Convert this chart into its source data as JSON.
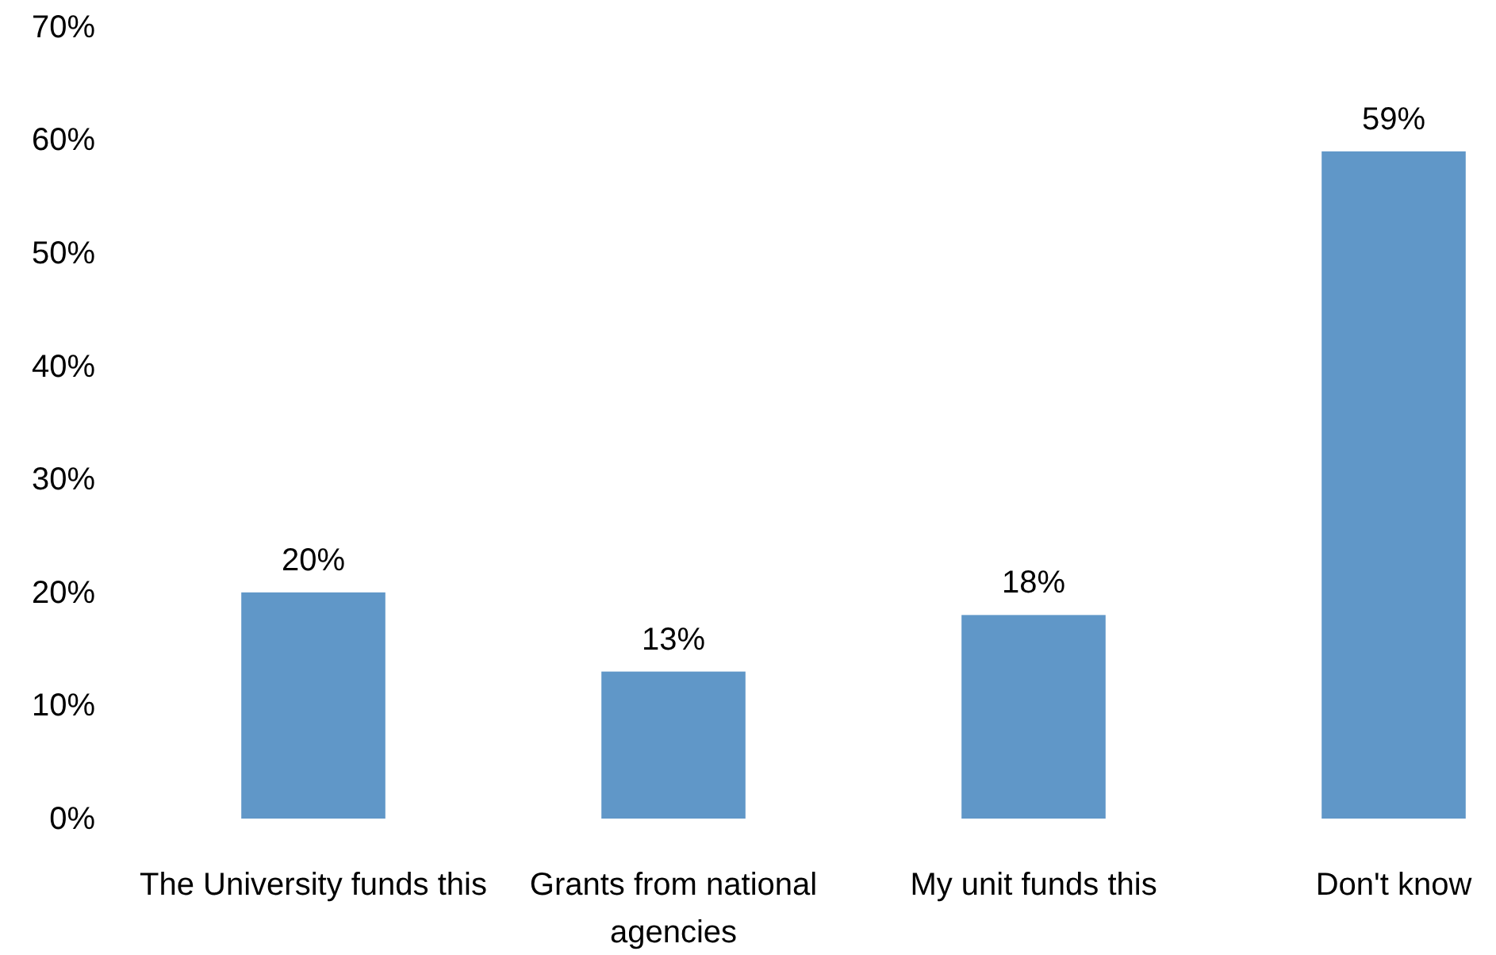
{
  "chart_data": {
    "type": "bar",
    "categories": [
      "The University funds this",
      "Grants from national agencies",
      "My unit funds this",
      "Don't know"
    ],
    "values": [
      20,
      13,
      18,
      59
    ],
    "color": "#6097c8",
    "data_labels": true,
    "value_labels": [
      "20%",
      "13%",
      "18%",
      "59%"
    ],
    "ylim": [
      0,
      70
    ],
    "yticks": [
      {
        "value": 0,
        "label": "0%"
      },
      {
        "value": 10,
        "label": "10%"
      },
      {
        "value": 20,
        "label": "20%"
      },
      {
        "value": 30,
        "label": "30%"
      },
      {
        "value": 40,
        "label": "40%"
      },
      {
        "value": 50,
        "label": "50%"
      },
      {
        "value": 60,
        "label": "60%"
      },
      {
        "value": 70,
        "label": "70%"
      }
    ]
  }
}
